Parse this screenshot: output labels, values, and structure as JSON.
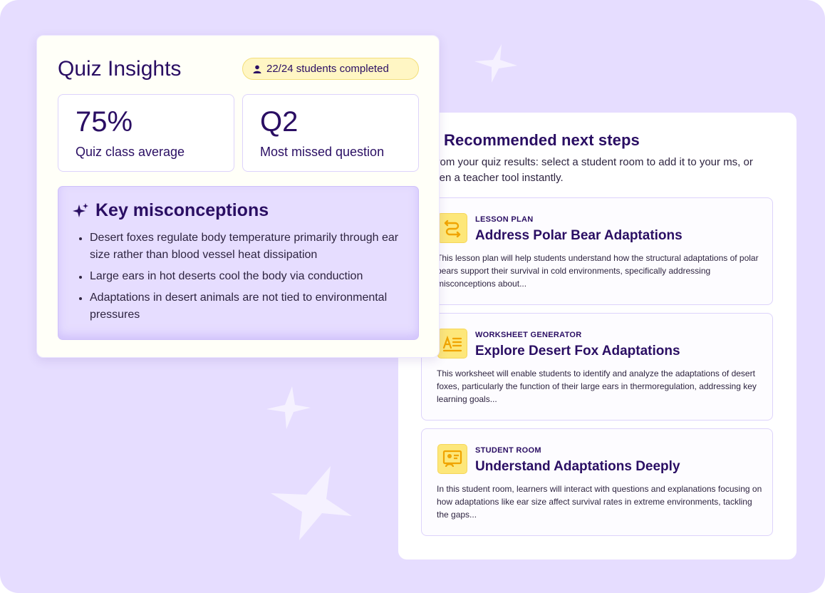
{
  "quiz_insights": {
    "title": "Quiz Insights",
    "completion_badge": "22/24 students completed",
    "stats": [
      {
        "value": "75%",
        "label": "Quiz class average"
      },
      {
        "value": "Q2",
        "label": "Most missed question"
      }
    ],
    "misconceptions": {
      "title": "Key misconceptions",
      "items": [
        "Desert foxes regulate body temperature primarily through ear size rather than blood vessel heat dissipation",
        "Large ears in hot deserts cool the body via conduction",
        "Adaptations in desert animals are not tied to environmental pressures"
      ]
    }
  },
  "recommended": {
    "title": "Recommended next steps",
    "description": "t from your quiz results: select a student room to add it to your ms, or open a teacher tool instantly.",
    "cards": [
      {
        "kicker": "LESSON PLAN",
        "title": "Address Polar Bear Adaptations",
        "description": "This lesson plan will help students understand how the structural adaptations of polar bears support their survival in cold environments, specifically addressing misconceptions about...",
        "icon": "lesson-plan-icon"
      },
      {
        "kicker": "WORKSHEET GENERATOR",
        "title": "Explore Desert Fox Adaptations",
        "description": "This worksheet will enable students to identify and analyze the adaptations of desert foxes, particularly the function of their large ears in thermoregulation, addressing key learning goals...",
        "icon": "worksheet-icon"
      },
      {
        "kicker": "STUDENT ROOM",
        "title": "Understand Adaptations Deeply",
        "description": "In this student room, learners will interact with questions and explanations focusing on how adaptations like ear size affect survival rates in extreme environments, tackling the gaps...",
        "icon": "student-room-icon"
      }
    ]
  },
  "colors": {
    "background": "#e6ddff",
    "primary_text": "#2a0e63",
    "icon_yellow": "#fde77a",
    "badge_yellow": "#fff6c4"
  }
}
